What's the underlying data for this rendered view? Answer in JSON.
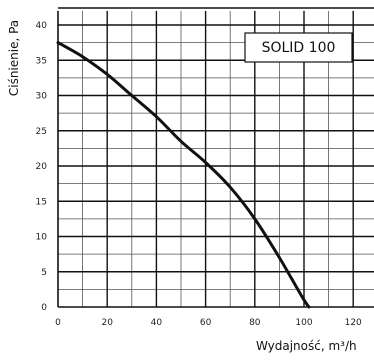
{
  "chart_data": {
    "type": "line",
    "model_label": "SOLID 100",
    "xlabel": "Wydajność, m³/h",
    "ylabel": "Ciśnienie, Pa",
    "xlim": [
      0,
      135
    ],
    "ylim": [
      0,
      42
    ],
    "x_ticks": [
      0,
      20,
      40,
      60,
      80,
      100,
      120
    ],
    "y_ticks": [
      0,
      5,
      10,
      15,
      20,
      25,
      30,
      35,
      40
    ],
    "grid": true,
    "series": [
      {
        "x": [
          0,
          10,
          20,
          30,
          40,
          50,
          60,
          70,
          80,
          90,
          95,
          100,
          102
        ],
        "values": [
          37.5,
          35.5,
          33.0,
          30.0,
          27.0,
          23.5,
          20.5,
          17.0,
          12.5,
          7.0,
          4.0,
          1.0,
          0
        ]
      }
    ]
  }
}
